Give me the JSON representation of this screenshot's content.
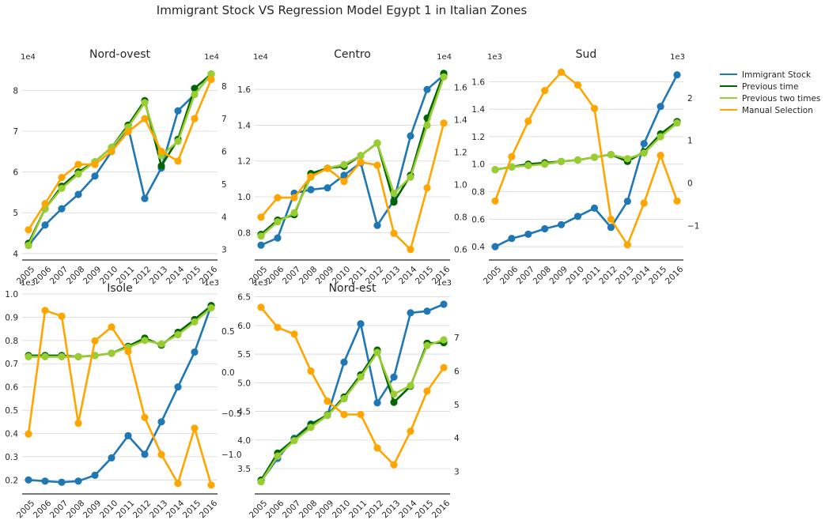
{
  "title": "Immigrant Stock VS Regression Model Egypt 1 in Italian Zones",
  "legend": {
    "placement": "right",
    "items": [
      {
        "label": "Immigrant Stock",
        "color": "#1f77b4"
      },
      {
        "label": "Previous time",
        "color": "#006400"
      },
      {
        "label": "Previous two times",
        "color": "#9acd32"
      },
      {
        "label": "Manual Selection",
        "color": "#ffa500"
      }
    ]
  },
  "chart_data": [
    {
      "type": "line",
      "title": "Nord-ovest",
      "categories": [
        "2005",
        "2006",
        "2007",
        "2008",
        "2009",
        "2010",
        "2011",
        "2012",
        "2013",
        "2014",
        "2015",
        "2016"
      ],
      "left_axis": {
        "range": [
          3.9,
          8.55
        ],
        "ticks": [
          "4",
          "5",
          "6",
          "7",
          "8"
        ],
        "multiplier": "1e4",
        "grid": true
      },
      "right_axis": {
        "range": [
          2.75,
          8.55
        ],
        "ticks": [
          "3",
          "4",
          "5",
          "6",
          "7",
          "8"
        ],
        "multiplier": "1e4"
      },
      "series": [
        {
          "name": "Immigrant Stock",
          "color": "#1f77b4",
          "axis": "left",
          "values": [
            4.2,
            4.7,
            5.1,
            5.45,
            5.9,
            6.5,
            7.1,
            5.35,
            6.1,
            7.5,
            7.9,
            8.4
          ]
        },
        {
          "name": "Previous time",
          "color": "#006400",
          "axis": "left",
          "values": [
            4.25,
            5.1,
            5.65,
            6.0,
            6.25,
            6.6,
            7.15,
            7.75,
            6.15,
            6.8,
            8.05,
            8.4
          ]
        },
        {
          "name": "Previous two times",
          "color": "#9acd32",
          "axis": "left",
          "values": [
            4.2,
            5.1,
            5.6,
            5.95,
            6.25,
            6.6,
            7.1,
            7.7,
            6.4,
            6.75,
            7.9,
            8.4
          ]
        },
        {
          "name": "Manual Selection",
          "color": "#ffa500",
          "axis": "right",
          "values": [
            3.6,
            4.4,
            5.2,
            5.6,
            5.6,
            6.0,
            6.6,
            7.0,
            6.0,
            5.7,
            7.0,
            8.2
          ]
        }
      ]
    },
    {
      "type": "line",
      "title": "Centro",
      "categories": [
        "2005",
        "2006",
        "2007",
        "2008",
        "2009",
        "2010",
        "2011",
        "2012",
        "2013",
        "2014",
        "2015",
        "2016"
      ],
      "left_axis": {
        "range": [
          0.66,
          1.72
        ],
        "ticks": [
          "0.8",
          "1.0",
          "1.2",
          "1.4",
          "1.6"
        ],
        "multiplier": "1e4",
        "grid": true
      },
      "right_axis": {
        "range": [
          0.55,
          1.72
        ],
        "ticks": [
          "0.6",
          "0.8",
          "1.0",
          "1.2",
          "1.4",
          "1.6"
        ],
        "multiplier": "1e4"
      },
      "series": [
        {
          "name": "Immigrant Stock",
          "color": "#1f77b4",
          "axis": "left",
          "values": [
            0.73,
            0.77,
            1.02,
            1.04,
            1.05,
            1.12,
            1.19,
            0.84,
            0.98,
            1.34,
            1.6,
            1.68
          ]
        },
        {
          "name": "Previous time",
          "color": "#006400",
          "axis": "left",
          "values": [
            0.79,
            0.87,
            0.9,
            1.13,
            1.16,
            1.17,
            1.23,
            1.3,
            0.97,
            1.12,
            1.44,
            1.69
          ]
        },
        {
          "name": "Previous two times",
          "color": "#9acd32",
          "axis": "left",
          "values": [
            0.78,
            0.86,
            0.91,
            1.11,
            1.16,
            1.18,
            1.23,
            1.3,
            1.02,
            1.11,
            1.4,
            1.67
          ]
        },
        {
          "name": "Manual Selection",
          "color": "#ffa500",
          "axis": "right",
          "values": [
            0.8,
            0.92,
            0.92,
            1.05,
            1.1,
            1.02,
            1.14,
            1.12,
            0.7,
            0.6,
            0.98,
            1.38
          ]
        }
      ]
    },
    {
      "type": "line",
      "title": "Sud",
      "categories": [
        "2005",
        "2006",
        "2007",
        "2008",
        "2009",
        "2010",
        "2011",
        "2012",
        "2013",
        "2014",
        "2015",
        "2016"
      ],
      "left_axis": {
        "range": [
          0.32,
          1.7
        ],
        "ticks": [
          "0.4",
          "0.6",
          "0.8",
          "1.0",
          "1.2",
          "1.4",
          "1.6"
        ],
        "multiplier": "1e3",
        "grid": true
      },
      "right_axis": {
        "range": [
          -1.75,
          2.7
        ],
        "ticks": [
          "−1",
          "0",
          "1",
          "2"
        ],
        "multiplier": "1e3"
      },
      "series": [
        {
          "name": "Immigrant Stock",
          "color": "#1f77b4",
          "axis": "left",
          "values": [
            0.4,
            0.46,
            0.49,
            0.53,
            0.56,
            0.62,
            0.68,
            0.54,
            0.73,
            1.15,
            1.42,
            1.65
          ]
        },
        {
          "name": "Previous time",
          "color": "#006400",
          "axis": "left",
          "values": [
            0.96,
            0.98,
            1.0,
            1.01,
            1.02,
            1.03,
            1.05,
            1.07,
            1.02,
            1.09,
            1.22,
            1.31
          ]
        },
        {
          "name": "Previous two times",
          "color": "#9acd32",
          "axis": "left",
          "values": [
            0.96,
            0.98,
            0.99,
            1.0,
            1.02,
            1.03,
            1.05,
            1.07,
            1.04,
            1.08,
            1.2,
            1.3
          ]
        },
        {
          "name": "Manual Selection",
          "color": "#ffa500",
          "axis": "right",
          "values": [
            -0.42,
            0.62,
            1.45,
            2.17,
            2.6,
            2.3,
            1.75,
            -0.85,
            -1.45,
            -0.47,
            0.65,
            -0.42
          ]
        }
      ]
    },
    {
      "type": "line",
      "title": "Isole",
      "categories": [
        "2005",
        "2006",
        "2007",
        "2008",
        "2009",
        "2010",
        "2011",
        "2012",
        "2013",
        "2014",
        "2015",
        "2016"
      ],
      "left_axis": {
        "range": [
          0.15,
          1.0
        ],
        "ticks": [
          "0.2",
          "0.3",
          "0.4",
          "0.5",
          "0.6",
          "0.7",
          "0.8",
          "0.9",
          "1.0"
        ],
        "multiplier": "1e3",
        "grid": true
      },
      "right_axis": {
        "range": [
          -1.45,
          0.95
        ],
        "ticks": [
          "−1.0",
          "−0.5",
          "0.0",
          "0.5"
        ],
        "multiplier": "1e3"
      },
      "series": [
        {
          "name": "Immigrant Stock",
          "color": "#1f77b4",
          "axis": "left",
          "values": [
            0.2,
            0.195,
            0.19,
            0.195,
            0.22,
            0.295,
            0.39,
            0.31,
            0.45,
            0.6,
            0.75,
            0.95
          ]
        },
        {
          "name": "Previous time",
          "color": "#006400",
          "axis": "left",
          "values": [
            0.735,
            0.735,
            0.735,
            0.73,
            0.735,
            0.745,
            0.775,
            0.81,
            0.78,
            0.835,
            0.89,
            0.95
          ]
        },
        {
          "name": "Previous two times",
          "color": "#9acd32",
          "axis": "left",
          "values": [
            0.73,
            0.73,
            0.73,
            0.73,
            0.735,
            0.745,
            0.77,
            0.8,
            0.785,
            0.825,
            0.88,
            0.94
          ]
        },
        {
          "name": "Manual Selection",
          "color": "#ffa500",
          "axis": "right",
          "values": [
            -0.75,
            0.75,
            0.68,
            -0.62,
            0.38,
            0.55,
            0.25,
            -0.55,
            -1.0,
            -1.35,
            -0.68,
            -1.37
          ]
        }
      ]
    },
    {
      "type": "line",
      "title": "Nord-est",
      "categories": [
        "2005",
        "2006",
        "2007",
        "2008",
        "2009",
        "2010",
        "2011",
        "2012",
        "2013",
        "2014",
        "2015",
        "2016"
      ],
      "left_axis": {
        "range": [
          3.1,
          6.55
        ],
        "ticks": [
          "3.5",
          "4.0",
          "4.5",
          "5.0",
          "5.5",
          "6.0",
          "6.5"
        ],
        "multiplier": "1e3",
        "grid": true
      },
      "right_axis": {
        "range": [
          2.4,
          8.3
        ],
        "ticks": [
          "3",
          "4",
          "5",
          "6",
          "7"
        ],
        "multiplier": "1e3"
      },
      "series": [
        {
          "name": "Immigrant Stock",
          "color": "#1f77b4",
          "axis": "left",
          "values": [
            3.28,
            3.68,
            4.03,
            4.28,
            4.43,
            5.36,
            6.03,
            4.65,
            5.1,
            6.22,
            6.25,
            6.37
          ]
        },
        {
          "name": "Previous time",
          "color": "#006400",
          "axis": "left",
          "values": [
            3.3,
            3.77,
            4.01,
            4.27,
            4.44,
            4.75,
            5.14,
            5.57,
            4.66,
            4.94,
            5.69,
            5.7
          ]
        },
        {
          "name": "Previous two times",
          "color": "#9acd32",
          "axis": "left",
          "values": [
            3.27,
            3.72,
            3.99,
            4.22,
            4.43,
            4.72,
            5.1,
            5.53,
            4.8,
            4.95,
            5.65,
            5.75
          ]
        },
        {
          "name": "Manual Selection",
          "color": "#ffa500",
          "axis": "right",
          "values": [
            7.9,
            7.3,
            7.1,
            6.0,
            5.1,
            4.7,
            4.7,
            3.7,
            3.2,
            4.2,
            5.4,
            6.1
          ]
        }
      ]
    }
  ]
}
